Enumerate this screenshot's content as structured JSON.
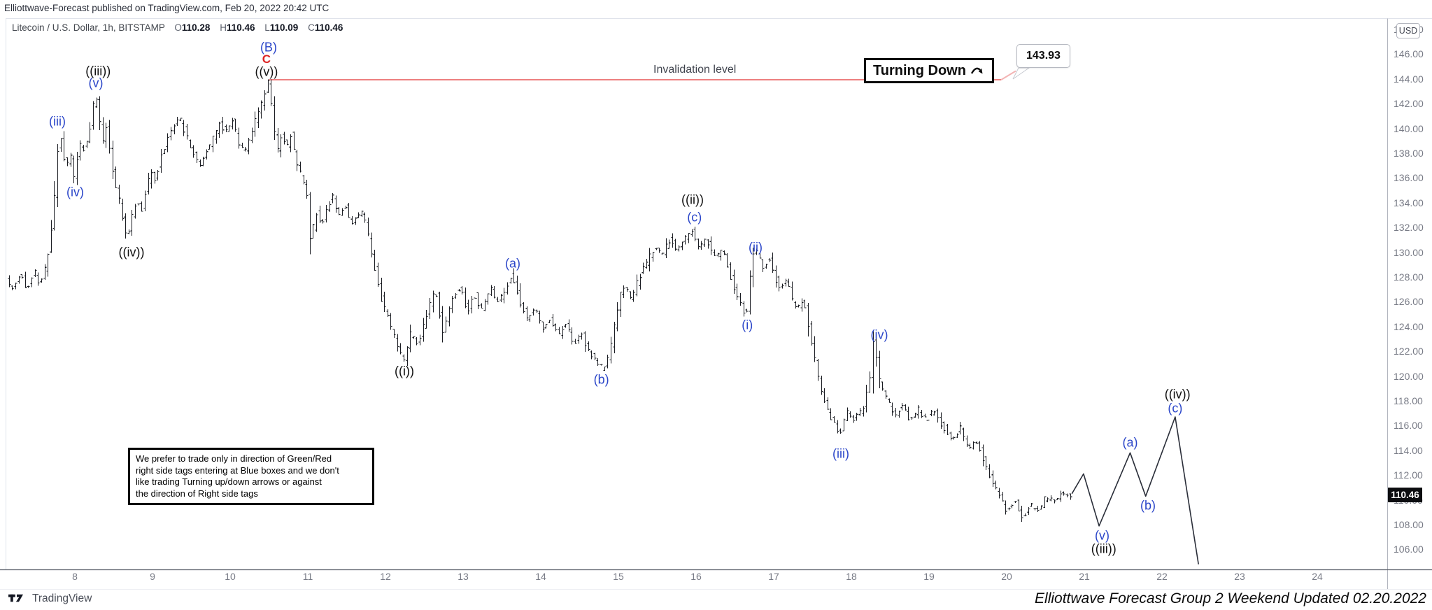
{
  "header": {
    "publish_line": "Elliottwave-Forecast published on TradingView.com, Feb 20, 2022 20:42 UTC"
  },
  "symbol_bar": {
    "title": "Litecoin / U.S. Dollar, 1h, BITSTAMP",
    "o_label": "O",
    "o_value": "110.28",
    "h_label": "H",
    "h_value": "110.46",
    "l_label": "L",
    "l_value": "110.09",
    "c_label": "C",
    "c_value": "110.46"
  },
  "annotations": {
    "invalidation_label": "Invalidation level",
    "turning_down_label": "Turning Down",
    "price_callout": "143.93",
    "note_text": "We prefer to trade only in direction of Green/Red\nright side tags entering at Blue boxes and we don't\nlike trading Turning up/down arrows or against\nthe direction of Right side tags"
  },
  "axes": {
    "currency_button": "USD",
    "last_price": "110.46",
    "price_ticks": [
      "148.00",
      "146.00",
      "144.00",
      "142.00",
      "140.00",
      "138.00",
      "136.00",
      "134.00",
      "132.00",
      "130.00",
      "128.00",
      "126.00",
      "124.00",
      "122.00",
      "120.00",
      "118.00",
      "116.00",
      "114.00",
      "112.00",
      "110.00",
      "108.00",
      "106.00"
    ],
    "time_ticks": [
      "8",
      "9",
      "10",
      "11",
      "12",
      "13",
      "14",
      "15",
      "16",
      "17",
      "18",
      "19",
      "20",
      "21",
      "22",
      "23",
      "24"
    ]
  },
  "footer": {
    "logo_text": "TradingView",
    "credit": "Elliottwave Forecast Group 2 Weekend Updated 02.20.2022"
  },
  "colors": {
    "blue_label": "#2b46c9",
    "red_label": "#dd2222",
    "black_label": "#101010",
    "bars": "#1a1c22",
    "projection": "#2a2e39",
    "invalidation_line": "#ed8080",
    "invalidation_line_light": "#f3b4b4",
    "axis_text": "#787b86",
    "badge_bg": "#0c0d10"
  },
  "chart_data": {
    "type": "bar",
    "subtype": "ohlc-bars-with-forecast",
    "instrument": "Litecoin / U.S. Dollar",
    "interval": "1h",
    "exchange": "BITSTAMP",
    "ohlc": {
      "open": 110.28,
      "high": 110.46,
      "low": 110.09,
      "close": 110.46
    },
    "invalidation_level": 143.93,
    "invalidation_span_days": [
      10.5,
      19.93
    ],
    "x_unit": "day of Feb 2022",
    "x_range": [
      7.0,
      25.6
    ],
    "y_range": [
      104.0,
      148.5
    ],
    "grid": false,
    "bars_start_day": 7.13,
    "bars_end_day": 20.84,
    "price_path_anchors": [
      [
        7.13,
        127.8
      ],
      [
        7.22,
        127.0
      ],
      [
        7.31,
        128.3
      ],
      [
        7.4,
        127.1
      ],
      [
        7.49,
        128.6
      ],
      [
        7.57,
        127.4
      ],
      [
        7.63,
        128.6
      ],
      [
        7.68,
        130.2
      ],
      [
        7.72,
        132.0
      ],
      [
        7.76,
        135.0
      ],
      [
        7.79,
        138.0
      ],
      [
        7.82,
        139.7
      ],
      [
        7.86,
        138.1
      ],
      [
        7.91,
        136.9
      ],
      [
        7.96,
        137.8
      ],
      [
        8.0,
        135.9
      ],
      [
        8.05,
        137.6
      ],
      [
        8.1,
        138.9
      ],
      [
        8.15,
        138.1
      ],
      [
        8.2,
        139.6
      ],
      [
        8.24,
        141.2
      ],
      [
        8.28,
        143.1
      ],
      [
        8.33,
        140.6
      ],
      [
        8.38,
        139.2
      ],
      [
        8.43,
        140.1
      ],
      [
        8.49,
        137.3
      ],
      [
        8.55,
        135.2
      ],
      [
        8.6,
        133.8
      ],
      [
        8.65,
        132.3
      ],
      [
        8.69,
        131.0
      ],
      [
        8.75,
        132.9
      ],
      [
        8.82,
        134.3
      ],
      [
        8.88,
        133.5
      ],
      [
        8.94,
        135.4
      ],
      [
        9.0,
        136.3
      ],
      [
        9.06,
        135.7
      ],
      [
        9.12,
        137.7
      ],
      [
        9.2,
        139.0
      ],
      [
        9.28,
        140.1
      ],
      [
        9.36,
        141.0
      ],
      [
        9.44,
        139.6
      ],
      [
        9.52,
        138.3
      ],
      [
        9.62,
        136.9
      ],
      [
        9.7,
        138.1
      ],
      [
        9.8,
        139.2
      ],
      [
        9.88,
        140.5
      ],
      [
        9.96,
        139.7
      ],
      [
        10.04,
        140.9
      ],
      [
        10.12,
        138.9
      ],
      [
        10.2,
        137.9
      ],
      [
        10.28,
        139.4
      ],
      [
        10.36,
        141.0
      ],
      [
        10.44,
        142.2
      ],
      [
        10.5,
        143.93
      ],
      [
        10.56,
        141.2
      ],
      [
        10.62,
        137.9
      ],
      [
        10.68,
        139.7
      ],
      [
        10.74,
        138.4
      ],
      [
        10.8,
        139.6
      ],
      [
        10.87,
        137.1
      ],
      [
        10.94,
        136.1
      ],
      [
        11.01,
        134.6
      ],
      [
        11.04,
        130.9
      ],
      [
        11.08,
        131.8
      ],
      [
        11.13,
        133.1
      ],
      [
        11.19,
        132.2
      ],
      [
        11.26,
        133.7
      ],
      [
        11.34,
        134.5
      ],
      [
        11.42,
        132.9
      ],
      [
        11.5,
        133.7
      ],
      [
        11.58,
        132.1
      ],
      [
        11.66,
        133.2
      ],
      [
        11.74,
        133.0
      ],
      [
        11.78,
        131.8
      ],
      [
        11.84,
        129.8
      ],
      [
        11.91,
        127.8
      ],
      [
        11.98,
        125.8
      ],
      [
        12.04,
        125.0
      ],
      [
        12.11,
        123.6
      ],
      [
        12.18,
        122.3
      ],
      [
        12.26,
        121.2
      ],
      [
        12.34,
        123.4
      ],
      [
        12.44,
        122.4
      ],
      [
        12.54,
        124.9
      ],
      [
        12.66,
        127.0
      ],
      [
        12.76,
        123.4
      ],
      [
        12.88,
        126.3
      ],
      [
        12.98,
        127.2
      ],
      [
        13.07,
        125.1
      ],
      [
        13.16,
        126.7
      ],
      [
        13.26,
        125.3
      ],
      [
        13.37,
        127.1
      ],
      [
        13.46,
        125.9
      ],
      [
        13.55,
        126.7
      ],
      [
        13.64,
        128.2
      ],
      [
        13.74,
        126.1
      ],
      [
        13.84,
        124.6
      ],
      [
        13.94,
        125.4
      ],
      [
        14.04,
        123.9
      ],
      [
        14.14,
        124.7
      ],
      [
        14.24,
        123.3
      ],
      [
        14.34,
        124.2
      ],
      [
        14.44,
        122.7
      ],
      [
        14.54,
        123.4
      ],
      [
        14.64,
        121.9
      ],
      [
        14.72,
        121.2
      ],
      [
        14.81,
        120.6
      ],
      [
        14.9,
        121.6
      ],
      [
        15.0,
        125.4
      ],
      [
        15.08,
        127.4
      ],
      [
        15.18,
        126.3
      ],
      [
        15.28,
        127.9
      ],
      [
        15.38,
        129.2
      ],
      [
        15.48,
        130.4
      ],
      [
        15.58,
        129.8
      ],
      [
        15.68,
        131.1
      ],
      [
        15.78,
        130.2
      ],
      [
        15.88,
        131.2
      ],
      [
        15.96,
        131.9
      ],
      [
        16.05,
        130.3
      ],
      [
        16.14,
        131.0
      ],
      [
        16.27,
        129.6
      ],
      [
        16.37,
        130.1
      ],
      [
        16.48,
        127.6
      ],
      [
        16.57,
        126.1
      ],
      [
        16.66,
        124.6
      ],
      [
        16.72,
        128.4
      ],
      [
        16.77,
        130.3
      ],
      [
        16.87,
        128.9
      ],
      [
        16.97,
        129.4
      ],
      [
        17.08,
        127.1
      ],
      [
        17.18,
        127.7
      ],
      [
        17.29,
        125.4
      ],
      [
        17.4,
        126.2
      ],
      [
        17.51,
        122.6
      ],
      [
        17.61,
        119.1
      ],
      [
        17.71,
        117.2
      ],
      [
        17.8,
        116.1
      ],
      [
        17.88,
        115.4
      ],
      [
        17.97,
        117.2
      ],
      [
        18.06,
        116.4
      ],
      [
        18.16,
        117.4
      ],
      [
        18.24,
        119.0
      ],
      [
        18.3,
        123.0
      ],
      [
        18.38,
        119.6
      ],
      [
        18.48,
        118.0
      ],
      [
        18.58,
        116.9
      ],
      [
        18.68,
        117.6
      ],
      [
        18.78,
        116.3
      ],
      [
        18.88,
        117.3
      ],
      [
        18.98,
        116.5
      ],
      [
        19.08,
        117.2
      ],
      [
        19.18,
        116.1
      ],
      [
        19.3,
        115.0
      ],
      [
        19.42,
        115.8
      ],
      [
        19.52,
        114.1
      ],
      [
        19.62,
        114.9
      ],
      [
        19.72,
        113.3
      ],
      [
        19.82,
        111.6
      ],
      [
        19.92,
        110.3
      ],
      [
        20.02,
        109.1
      ],
      [
        20.12,
        109.9
      ],
      [
        20.22,
        108.6
      ],
      [
        20.32,
        109.6
      ],
      [
        20.42,
        109.1
      ],
      [
        20.52,
        110.3
      ],
      [
        20.62,
        109.9
      ],
      [
        20.72,
        110.7
      ],
      [
        20.84,
        110.46
      ]
    ],
    "projection_path": [
      [
        20.84,
        110.5
      ],
      [
        20.99,
        112.1
      ],
      [
        21.19,
        107.9
      ],
      [
        21.59,
        113.8
      ],
      [
        21.79,
        110.3
      ],
      [
        22.17,
        116.7
      ],
      [
        22.47,
        104.8
      ]
    ],
    "wave_labels": [
      {
        "text": "(iii)",
        "day": 7.775,
        "price": 140.55,
        "color": "blue"
      },
      {
        "text": "(iv)",
        "day": 8.005,
        "price": 134.85,
        "color": "blue"
      },
      {
        "text": "((iii))",
        "day": 8.3,
        "price": 144.6,
        "color": "black"
      },
      {
        "text": "(v)",
        "day": 8.27,
        "price": 143.64,
        "color": "blue"
      },
      {
        "text": "((iv))",
        "day": 8.73,
        "price": 129.98,
        "color": "black"
      },
      {
        "text": "(B)",
        "day": 10.495,
        "price": 146.55,
        "color": "blue"
      },
      {
        "text": "C",
        "day": 10.468,
        "price": 145.55,
        "color": "red"
      },
      {
        "text": "((v))",
        "day": 10.468,
        "price": 144.55,
        "color": "black"
      },
      {
        "text": "((i))",
        "day": 12.243,
        "price": 120.4,
        "color": "black"
      },
      {
        "text": "(a)",
        "day": 13.64,
        "price": 129.1,
        "color": "blue"
      },
      {
        "text": "(b)",
        "day": 14.78,
        "price": 119.7,
        "color": "blue"
      },
      {
        "text": "((ii))",
        "day": 15.955,
        "price": 134.2,
        "color": "black"
      },
      {
        "text": "(c)",
        "day": 15.98,
        "price": 132.8,
        "color": "blue"
      },
      {
        "text": "(i)",
        "day": 16.66,
        "price": 124.1,
        "color": "blue"
      },
      {
        "text": "(ii)",
        "day": 16.766,
        "price": 130.4,
        "color": "blue"
      },
      {
        "text": "(iii)",
        "day": 17.865,
        "price": 113.7,
        "color": "blue"
      },
      {
        "text": "(iv)",
        "day": 18.36,
        "price": 123.3,
        "color": "blue"
      },
      {
        "text": "(v)",
        "day": 21.23,
        "price": 107.1,
        "color": "blue"
      },
      {
        "text": "((iii))",
        "day": 21.25,
        "price": 106.0,
        "color": "black"
      },
      {
        "text": "(a)",
        "day": 21.59,
        "price": 114.6,
        "color": "blue"
      },
      {
        "text": "(b)",
        "day": 21.82,
        "price": 109.5,
        "color": "blue"
      },
      {
        "text": "(c)",
        "day": 22.17,
        "price": 117.4,
        "color": "blue"
      },
      {
        "text": "((iv))",
        "day": 22.2,
        "price": 118.5,
        "color": "black"
      }
    ]
  }
}
